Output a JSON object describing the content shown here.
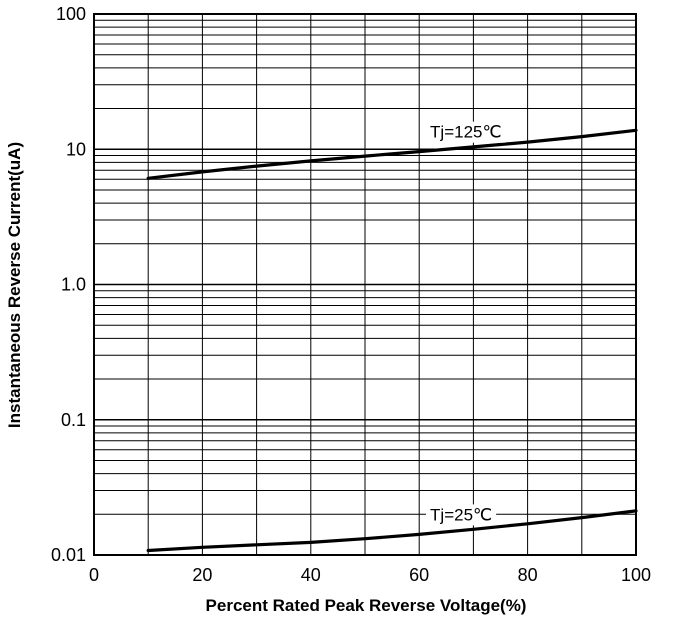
{
  "chart_data": {
    "type": "line",
    "xlabel": "Percent Rated Peak Reverse Voltage(%)",
    "ylabel": "Instantaneous Reverse Current(uA)",
    "xlim": [
      0,
      100
    ],
    "ylim": [
      0.01,
      100
    ],
    "yscale": "log",
    "grid": true,
    "x_ticks": [
      "0",
      "20",
      "40",
      "60",
      "80",
      "100"
    ],
    "y_ticks": [
      "100",
      "10",
      "1.0",
      "0.1",
      "0.01"
    ],
    "series": [
      {
        "name": "Tj=125℃",
        "x": [
          10,
          20,
          30,
          40,
          50,
          60,
          70,
          80,
          90,
          100
        ],
        "y": [
          6.1,
          6.8,
          7.5,
          8.2,
          8.9,
          9.6,
          10.4,
          11.3,
          12.4,
          13.8
        ]
      },
      {
        "name": "Tj=25℃",
        "x": [
          10,
          20,
          30,
          40,
          50,
          60,
          70,
          80,
          90,
          100
        ],
        "y": [
          0.0108,
          0.0114,
          0.0119,
          0.0124,
          0.0132,
          0.0142,
          0.0155,
          0.017,
          0.0189,
          0.0212
        ]
      }
    ]
  }
}
